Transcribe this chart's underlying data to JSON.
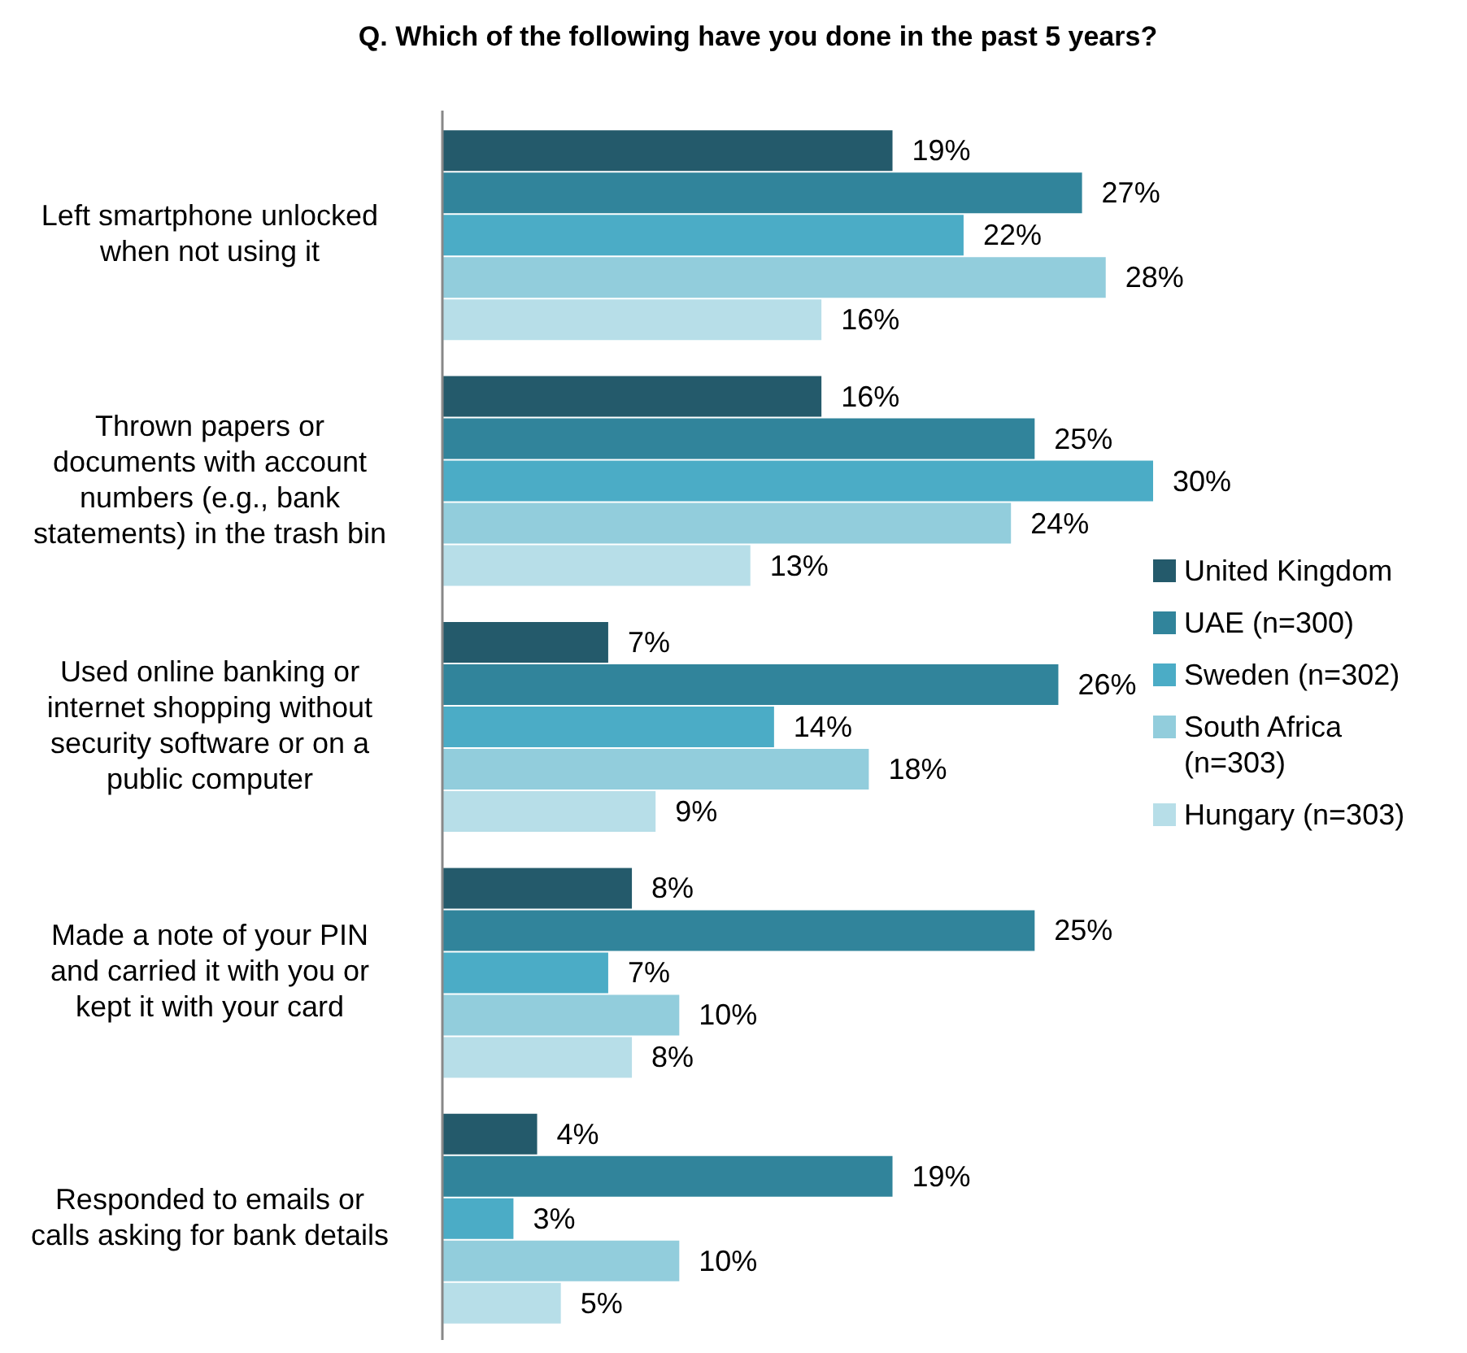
{
  "chart_data": {
    "type": "bar",
    "orientation": "horizontal",
    "title": "Q. Which of the following have you done in the past 5 years?",
    "categories": [
      "Left smartphone unlocked when not using it",
      "Thrown papers or documents with account numbers (e.g., bank statements) in the trash bin",
      "Used online banking or internet shopping without security software or on a public computer",
      "Made a note of your PIN and carried it with you or kept it with your card",
      "Responded to emails or calls asking for bank details"
    ],
    "series": [
      {
        "name": "United Kingdom",
        "color": "#245a6b",
        "values": [
          19,
          16,
          7,
          8,
          4
        ],
        "value_labels": [
          "19%",
          "16%",
          "7%",
          "8%",
          "4%"
        ]
      },
      {
        "name": "UAE (n=300)",
        "color": "#31849b",
        "values": [
          27,
          25,
          26,
          25,
          19
        ],
        "value_labels": [
          "27%",
          "25%",
          "26%",
          "25%",
          "19%"
        ]
      },
      {
        "name": "Sweden (n=302)",
        "color": "#4bacc6",
        "values": [
          22,
          30,
          14,
          7,
          3
        ],
        "value_labels": [
          "22%",
          "30%",
          "14%",
          "7%",
          "3%"
        ]
      },
      {
        "name": "South Africa (n=303)",
        "color": "#92cddc",
        "values": [
          28,
          24,
          18,
          10,
          10
        ],
        "value_labels": [
          "28%",
          "24%",
          "18%",
          "10%",
          "10%"
        ]
      },
      {
        "name": "Hungary (n=303)",
        "color": "#b7dee8",
        "values": [
          16,
          13,
          9,
          8,
          5
        ],
        "value_labels": [
          "16%",
          "13%",
          "9%",
          "8%",
          "5%"
        ]
      }
    ],
    "legend": "right",
    "grid": false
  }
}
